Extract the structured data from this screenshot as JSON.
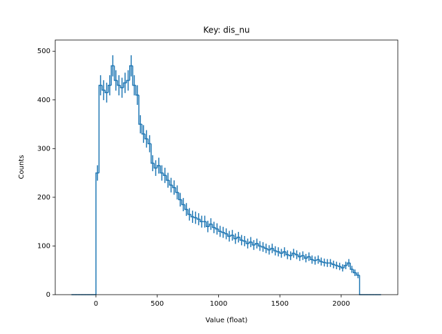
{
  "chart_data": {
    "type": "histogram",
    "title": "Key: dis_nu",
    "x_label": "Value (float)",
    "y_label": "Counts",
    "color": "#1f77b4",
    "bins": [
      -200,
      -175,
      -150,
      -125,
      -100,
      -75,
      -50,
      -25,
      0,
      25,
      50,
      75,
      100,
      125,
      150,
      175,
      200,
      225,
      250,
      275,
      300,
      325,
      350,
      375,
      400,
      425,
      450,
      475,
      500,
      525,
      550,
      575,
      600,
      625,
      650,
      675,
      700,
      725,
      750,
      775,
      800,
      825,
      850,
      875,
      900,
      925,
      950,
      975,
      1000,
      1025,
      1050,
      1075,
      1100,
      1125,
      1150,
      1175,
      1200,
      1225,
      1250,
      1275,
      1300,
      1325,
      1350,
      1375,
      1400,
      1425,
      1450,
      1475,
      1500,
      1525,
      1550,
      1575,
      1600,
      1625,
      1650,
      1675,
      1700,
      1725,
      1750,
      1775,
      1800,
      1825,
      1850,
      1875,
      1900,
      1925,
      1950,
      1975,
      2000,
      2025,
      2050,
      2075,
      2100,
      2125,
      2150,
      2175,
      2200,
      2225,
      2250,
      2275,
      2300,
      2325
    ],
    "values": [
      0,
      0,
      0,
      0,
      0,
      0,
      0,
      0,
      250,
      430,
      420,
      415,
      430,
      470,
      440,
      430,
      425,
      435,
      440,
      470,
      430,
      410,
      350,
      330,
      320,
      310,
      270,
      260,
      265,
      250,
      245,
      235,
      225,
      220,
      210,
      195,
      185,
      175,
      165,
      160,
      158,
      155,
      150,
      150,
      140,
      145,
      138,
      135,
      130,
      128,
      125,
      120,
      122,
      115,
      118,
      112,
      110,
      105,
      108,
      102,
      105,
      100,
      98,
      95,
      92,
      95,
      90,
      88,
      85,
      88,
      82,
      80,
      85,
      82,
      78,
      80,
      75,
      78,
      72,
      70,
      72,
      68,
      66,
      65,
      65,
      62,
      60,
      58,
      55,
      60,
      65,
      52,
      45,
      40,
      0,
      0,
      0,
      0,
      0,
      0,
      0
    ],
    "errors": [
      0,
      0,
      0,
      0,
      0,
      0,
      0,
      0,
      15.8,
      20.7,
      20.5,
      20.4,
      20.7,
      21.7,
      21.0,
      20.7,
      20.6,
      20.9,
      21.0,
      21.7,
      20.7,
      20.2,
      18.7,
      18.2,
      17.9,
      17.6,
      16.4,
      16.1,
      16.3,
      15.8,
      15.7,
      15.3,
      15.0,
      14.8,
      14.5,
      14.0,
      13.6,
      13.2,
      12.8,
      12.6,
      12.6,
      12.4,
      12.2,
      12.2,
      11.8,
      12.0,
      11.7,
      11.6,
      11.4,
      11.3,
      11.2,
      11.0,
      11.0,
      10.7,
      10.9,
      10.6,
      10.5,
      10.2,
      10.4,
      10.1,
      10.2,
      10,
      9.9,
      9.7,
      9.6,
      9.7,
      9.5,
      9.4,
      9.2,
      9.4,
      9.1,
      8.9,
      9.2,
      9.1,
      8.8,
      8.9,
      8.7,
      8.8,
      8.5,
      8.4,
      8.5,
      8.2,
      8.1,
      8.1,
      8.1,
      7.9,
      7.7,
      7.6,
      7.4,
      7.7,
      8.1,
      7.2,
      6.7,
      6.3,
      0,
      0,
      0,
      0,
      0,
      0,
      0
    ],
    "xlim": [
      -332,
      2462
    ],
    "ylim": [
      0,
      523
    ],
    "xticks": [
      0,
      500,
      1000,
      1500,
      2000
    ],
    "yticks": [
      0,
      100,
      200,
      300,
      400,
      500
    ]
  }
}
